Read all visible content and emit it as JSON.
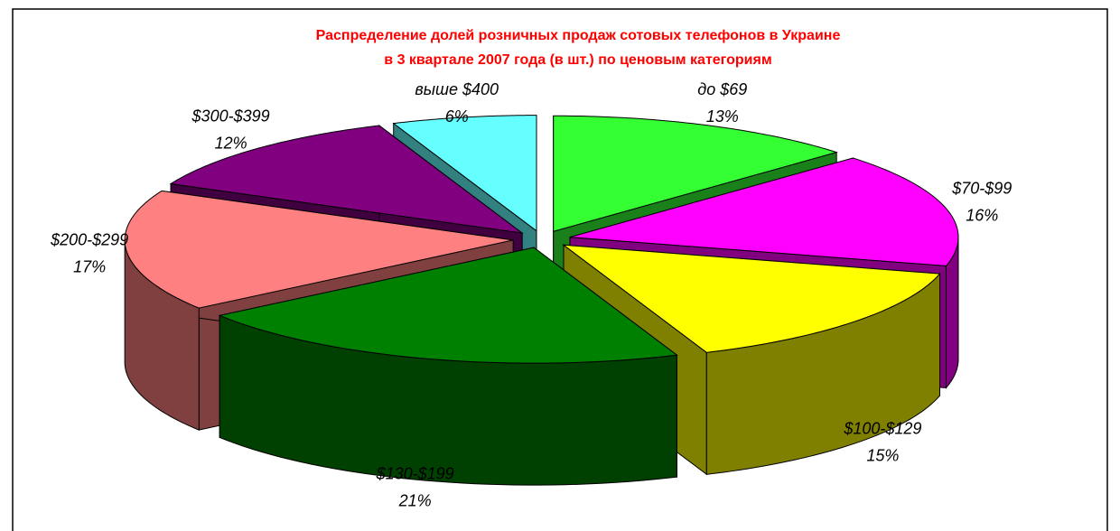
{
  "chart_data": {
    "type": "pie",
    "title": [
      "Распределение долей розничных продаж сотовых телефонов в Украине",
      "в 3 квартале 2007 года  (в шт.) по ценовым категориям"
    ],
    "categories": [
      "до $69",
      "$70-$99",
      "$100-$129",
      "$130-$199",
      "$200-$299",
      "$300-$399",
      "выше $400"
    ],
    "values": [
      13,
      16,
      15,
      21,
      17,
      12,
      6
    ],
    "value_labels": [
      "13%",
      "16%",
      "15%",
      "21%",
      "17%",
      "12%",
      "6%"
    ],
    "colors": [
      "#33ff33",
      "#ff00ff",
      "#ffff00",
      "#008000",
      "#ff8080",
      "#800080",
      "#66ffff"
    ]
  }
}
